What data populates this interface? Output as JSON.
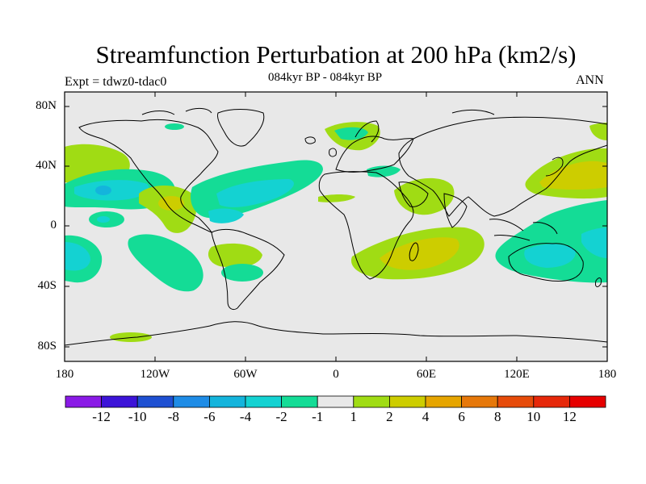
{
  "title": "Streamfunction Perturbation at 200 hPa (km2/s)",
  "subtitle": "084kyr BP - 084kyr BP",
  "left_label": "Expt = tdwz0-tdac0",
  "right_label": "ANN",
  "lat_ticks": [
    "80N",
    "40N",
    "0",
    "40S",
    "80S"
  ],
  "lon_ticks": [
    "180",
    "120W",
    "60W",
    "0",
    "60E",
    "120E",
    "180"
  ],
  "colorbar": {
    "labels": [
      "-12",
      "-10",
      "-8",
      "-6",
      "-4",
      "-2",
      "-1",
      "1",
      "2",
      "4",
      "6",
      "8",
      "10",
      "12"
    ],
    "colors": [
      "#8a1ae6",
      "#3c14d8",
      "#1e50d2",
      "#1e8ce6",
      "#14b4dc",
      "#14d2d2",
      "#14dc96",
      "#e8e8e8",
      "#a0dc14",
      "#cdcd00",
      "#e6a500",
      "#e6780a",
      "#e64b0a",
      "#e6280a",
      "#e60000"
    ]
  },
  "colors": {
    "background": "#e8e8e8",
    "teal": "#14dc96",
    "cyan": "#14d2d2",
    "lightblue": "#14b4dc",
    "green": "#a0dc14",
    "olive": "#cdcd00",
    "orange": "#e6a500"
  }
}
